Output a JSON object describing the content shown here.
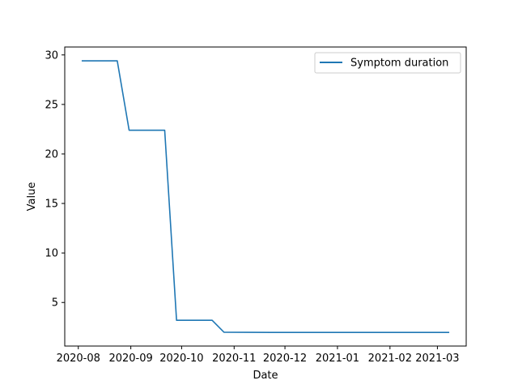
{
  "chart_data": {
    "type": "line",
    "title": "",
    "xlabel": "Date",
    "ylabel": "Value",
    "x_ticks": [
      "2020-08",
      "2020-09",
      "2020-10",
      "2020-11",
      "2020-12",
      "2021-01",
      "2021-02",
      "2021-03"
    ],
    "y_ticks": [
      5,
      10,
      15,
      20,
      25,
      30
    ],
    "xlim": [
      "2020-07-24",
      "2021-03-18"
    ],
    "ylim": [
      0.6,
      30.8
    ],
    "grid": false,
    "legend_position": "top-right",
    "color": "#1f77b4",
    "series": [
      {
        "name": "Symptom duration",
        "x": [
          "2020-08-03",
          "2020-08-24",
          "2020-08-31",
          "2020-09-21",
          "2020-09-28",
          "2020-10-19",
          "2020-10-26",
          "2020-11-23",
          "2021-03-08"
        ],
        "y": [
          29.4,
          29.4,
          22.4,
          22.4,
          3.2,
          3.2,
          2.0,
          1.98,
          1.98
        ]
      }
    ]
  }
}
